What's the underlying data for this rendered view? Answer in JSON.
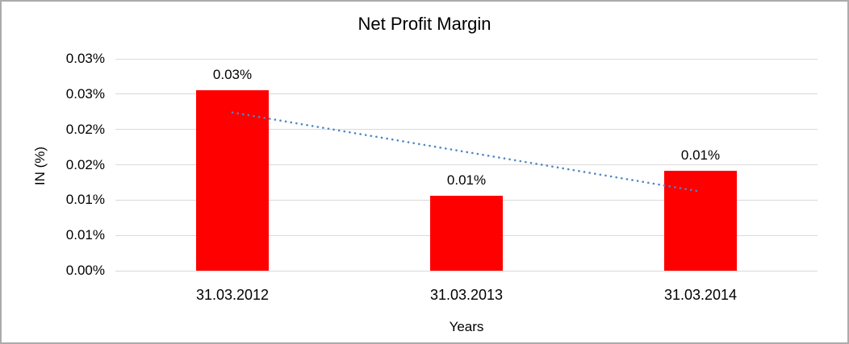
{
  "window": {
    "background": "#ffffff",
    "border_color": "#ababab"
  },
  "chart_data": {
    "type": "bar",
    "title": "Net Profit Margin",
    "xlabel": "Years",
    "ylabel": "IN (%)",
    "categories": [
      "31.03.2012",
      "31.03.2013",
      "31.03.2014"
    ],
    "values": [
      0.0255,
      0.0106,
      0.0142
    ],
    "value_unit": "percent",
    "data_labels": [
      "0.03%",
      "0.01%",
      "0.01%"
    ],
    "y_tick_labels_bottom_to_top": [
      "0.00%",
      "0.01%",
      "0.01%",
      "0.02%",
      "0.02%",
      "0.03%",
      "0.03%"
    ],
    "ylim": [
      0,
      0.03
    ],
    "grid": true,
    "legend_position": "none",
    "bar_color": "#FF0000",
    "gridline_color": "#D9D9D9",
    "text_color": "#000000",
    "trendline": {
      "type": "linear",
      "style": "dotted",
      "color": "#4F86C6",
      "start_value": 0.0224,
      "end_value": 0.0112,
      "span": "first-to-last-category-center"
    }
  }
}
